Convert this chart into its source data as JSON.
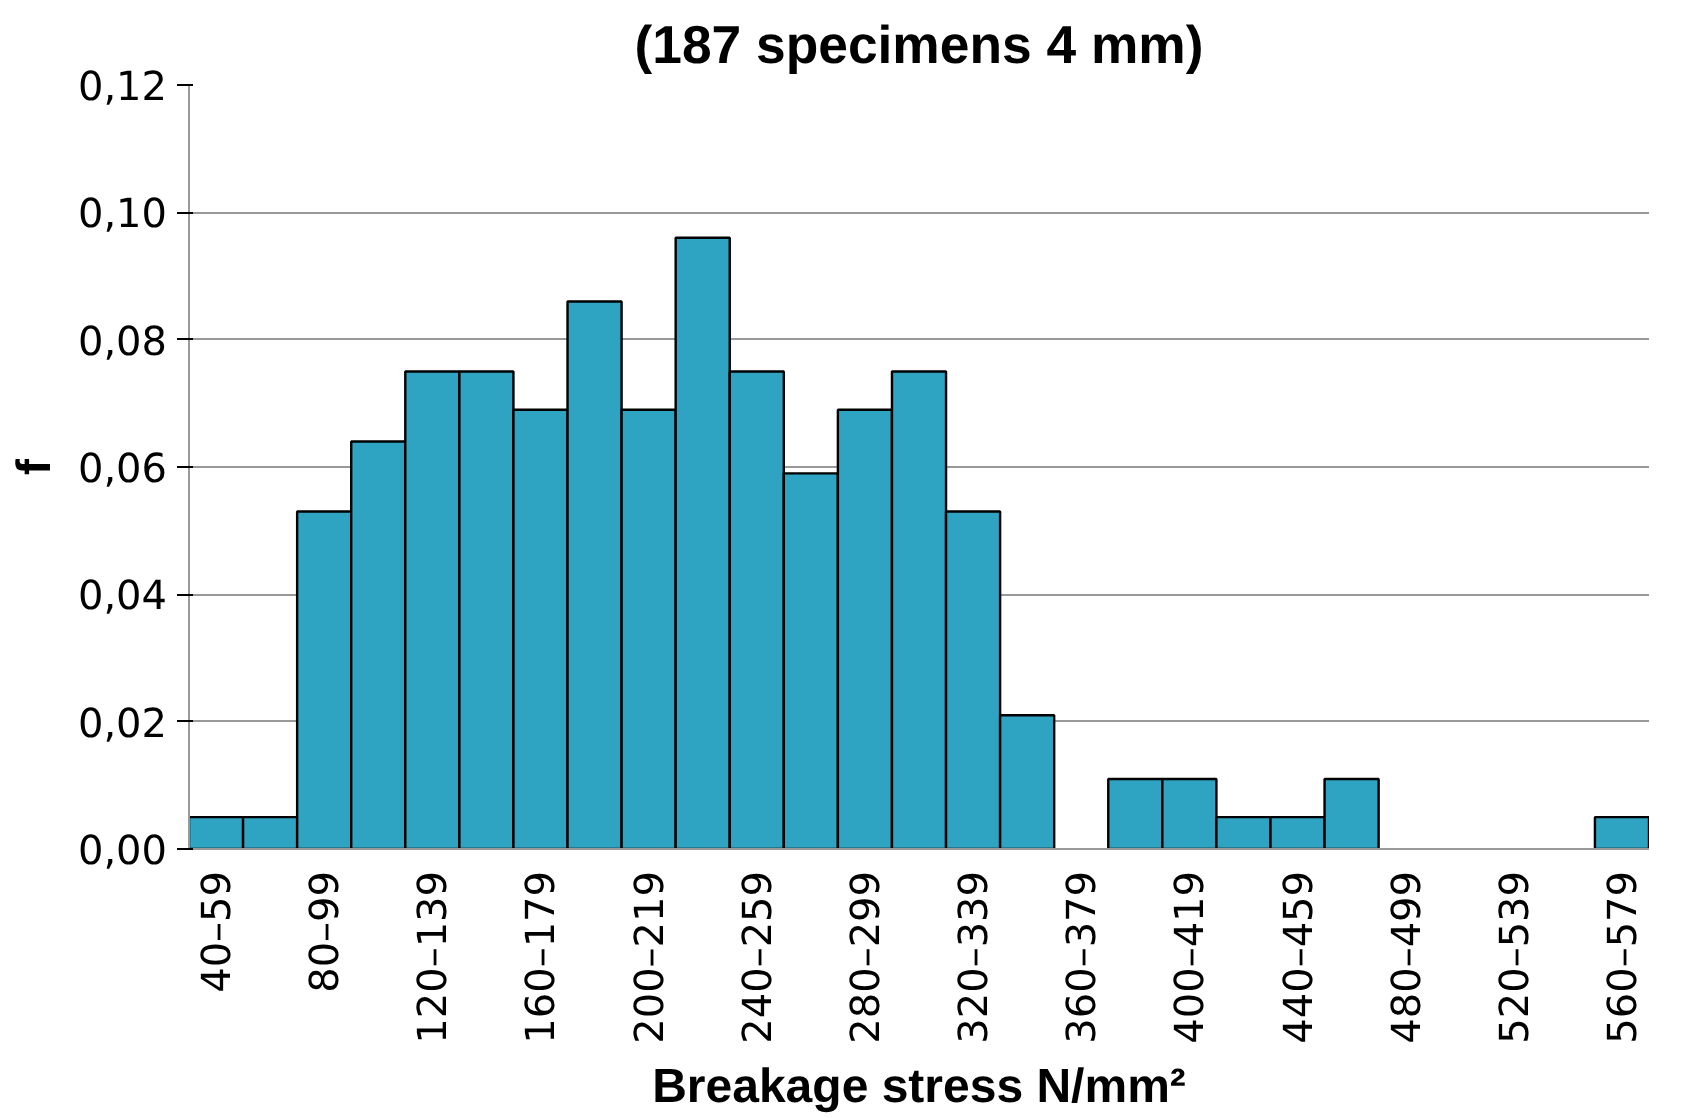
{
  "chart_data": {
    "type": "bar",
    "title": "(187 specimens 4 mm)",
    "xlabel": "Breakage stress N/mm²",
    "ylabel": "f",
    "categories": [
      "40–59",
      null,
      "80–99",
      null,
      "120–139",
      null,
      "160–179",
      null,
      "200–219",
      null,
      "240–259",
      null,
      "280–299",
      null,
      "320–339",
      null,
      "360–379",
      null,
      "400–419",
      null,
      "440–459",
      null,
      "480–499",
      null,
      "520–539",
      null,
      "560–579"
    ],
    "values": [
      0.005,
      0.005,
      0.053,
      0.064,
      0.075,
      0.075,
      0.069,
      0.086,
      0.069,
      0.096,
      0.075,
      0.059,
      0.069,
      0.075,
      0.053,
      0.021,
      0,
      0.011,
      0.011,
      0.005,
      0.005,
      0.011,
      0,
      0,
      0,
      0,
      0.005
    ],
    "color": "#2ea3c2",
    "ylim": [
      0,
      0.12
    ],
    "yticks": [
      {
        "value": 0,
        "label": "0,00"
      },
      {
        "value": 0.02,
        "label": "0,02"
      },
      {
        "value": 0.04,
        "label": "0,04"
      },
      {
        "value": 0.06,
        "label": "0,06"
      },
      {
        "value": 0.08,
        "label": "0,08"
      },
      {
        "value": 0.1,
        "label": "0,10"
      },
      {
        "value": 0.12,
        "label": "0,12"
      }
    ],
    "grid": "y"
  }
}
